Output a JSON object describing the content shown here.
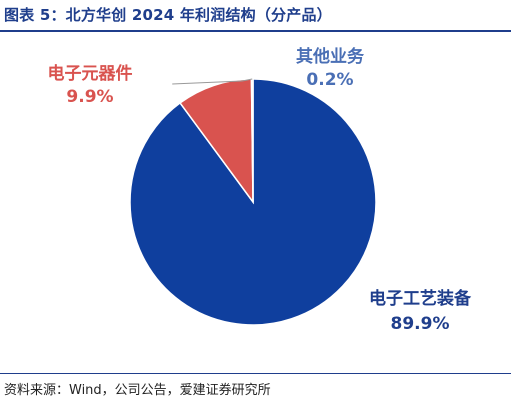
{
  "figure": {
    "title": "图表 5：北方华创 2024 年利润结构（分产品）",
    "source": "资料来源：Wind，公司公告，爱建证券研究所"
  },
  "chart_data": {
    "type": "pie",
    "title": "图表 5：北方华创 2024 年利润结构（分产品）",
    "slices": [
      {
        "name": "电子工艺装备",
        "value": 89.9,
        "label": "89.9%",
        "color": "#0f3f9e"
      },
      {
        "name": "电子元器件",
        "value": 9.9,
        "label": "9.9%",
        "color": "#d9534f"
      },
      {
        "name": "其他业务",
        "value": 0.2,
        "label": "0.2%",
        "color": "#5b7fbf"
      }
    ],
    "start_angle": "12 o'clock",
    "direction": "clockwise",
    "legend": "none"
  }
}
